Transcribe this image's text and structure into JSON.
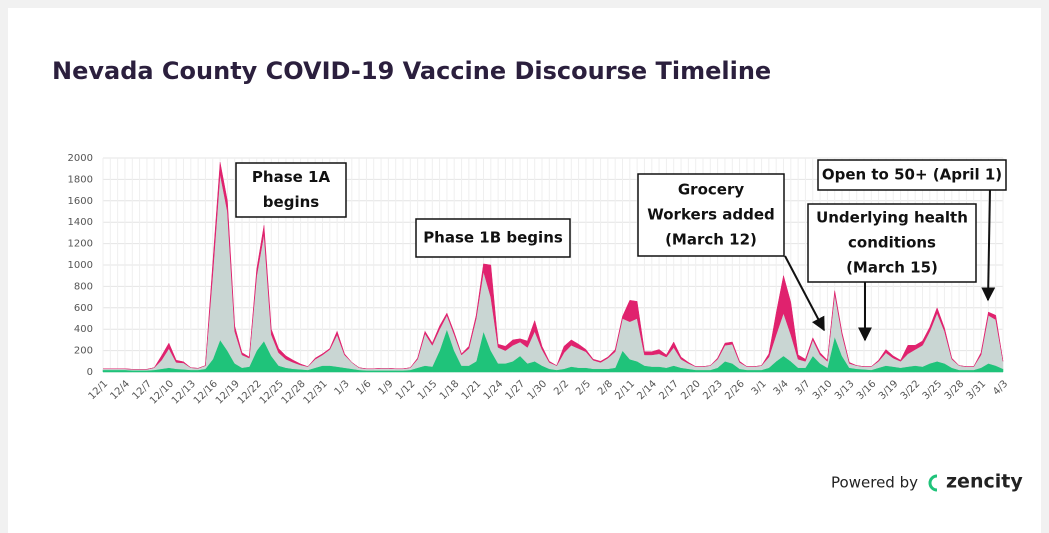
{
  "chart_data": {
    "type": "stacked-area",
    "title": "Nevada County COVID-19 Vaccine Discourse Timeline",
    "categories": [
      "12/1",
      null,
      null,
      "12/4",
      null,
      null,
      "12/7",
      null,
      null,
      "12/10",
      null,
      null,
      "12/13",
      null,
      null,
      "12/16",
      null,
      null,
      "12/19",
      null,
      null,
      "12/22",
      null,
      null,
      "12/25",
      null,
      null,
      "12/28",
      null,
      null,
      "12/31",
      null,
      null,
      "1/3",
      null,
      null,
      "1/6",
      null,
      null,
      "1/9",
      null,
      null,
      "1/12",
      null,
      null,
      "1/15",
      null,
      null,
      "1/18",
      null,
      null,
      "1/21",
      null,
      null,
      "1/24",
      null,
      null,
      "1/27",
      null,
      null,
      "1/30",
      null,
      null,
      "2/2",
      null,
      null,
      "2/5",
      null,
      null,
      "2/8",
      null,
      null,
      "2/11",
      null,
      null,
      "2/14",
      null,
      null,
      "2/17",
      null,
      null,
      "2/20",
      null,
      null,
      "2/23",
      null,
      null,
      "2/26",
      null,
      null,
      "3/1",
      null,
      null,
      "3/4",
      null,
      null,
      "3/7",
      null,
      null,
      "3/10",
      null,
      null,
      "3/13",
      null,
      null,
      "3/16",
      null,
      null,
      "3/19",
      null,
      null,
      "3/22",
      null,
      null,
      "3/25",
      null,
      null,
      "3/28",
      null,
      null,
      "3/31",
      null,
      null,
      "4/3"
    ],
    "series": [
      {
        "color": "#1fc37a",
        "values": [
          20,
          20,
          20,
          20,
          15,
          15,
          15,
          20,
          30,
          40,
          30,
          25,
          20,
          20,
          30,
          120,
          300,
          200,
          80,
          40,
          50,
          200,
          290,
          150,
          60,
          40,
          30,
          25,
          20,
          40,
          60,
          60,
          50,
          40,
          30,
          20,
          15,
          15,
          15,
          15,
          15,
          15,
          20,
          40,
          60,
          50,
          200,
          400,
          200,
          60,
          60,
          100,
          380,
          200,
          80,
          80,
          100,
          150,
          80,
          100,
          60,
          30,
          20,
          30,
          50,
          40,
          40,
          30,
          30,
          30,
          40,
          200,
          120,
          100,
          60,
          50,
          50,
          40,
          60,
          40,
          30,
          20,
          20,
          20,
          40,
          100,
          80,
          30,
          20,
          20,
          20,
          40,
          100,
          150,
          100,
          40,
          40,
          150,
          80,
          40,
          330,
          150,
          40,
          30,
          25,
          20,
          40,
          60,
          50,
          40,
          50,
          60,
          50,
          80,
          100,
          80,
          40,
          20,
          20,
          20,
          40,
          80,
          60,
          30
        ]
      },
      {
        "color": "#c9d6d3",
        "values": [
          10,
          10,
          10,
          10,
          10,
          10,
          10,
          20,
          80,
          180,
          60,
          60,
          20,
          15,
          30,
          800,
          1550,
          1300,
          300,
          120,
          80,
          700,
          1000,
          200,
          120,
          80,
          60,
          40,
          30,
          80,
          100,
          150,
          300,
          120,
          60,
          20,
          15,
          15,
          20,
          20,
          15,
          15,
          20,
          80,
          300,
          200,
          200,
          130,
          150,
          100,
          160,
          400,
          560,
          500,
          150,
          120,
          150,
          130,
          150,
          280,
          150,
          60,
          40,
          150,
          200,
          180,
          150,
          80,
          60,
          100,
          150,
          300,
          350,
          400,
          100,
          110,
          120,
          100,
          170,
          80,
          50,
          30,
          30,
          40,
          80,
          150,
          180,
          60,
          30,
          30,
          40,
          100,
          250,
          400,
          250,
          80,
          60,
          150,
          80,
          60,
          400,
          200,
          40,
          30,
          25,
          30,
          60,
          120,
          80,
          60,
          120,
          150,
          200,
          300,
          450,
          300,
          80,
          40,
          30,
          30,
          120,
          450,
          430,
          70
        ]
      },
      {
        "color": "#e0226e",
        "values": [
          0,
          0,
          0,
          0,
          0,
          0,
          0,
          0,
          40,
          50,
          20,
          10,
          0,
          0,
          0,
          100,
          110,
          100,
          50,
          20,
          10,
          60,
          80,
          50,
          40,
          30,
          20,
          10,
          0,
          10,
          10,
          10,
          30,
          10,
          0,
          0,
          0,
          0,
          0,
          0,
          0,
          0,
          0,
          10,
          20,
          20,
          30,
          20,
          20,
          10,
          20,
          30,
          70,
          300,
          30,
          40,
          50,
          30,
          60,
          100,
          30,
          10,
          0,
          60,
          50,
          40,
          20,
          10,
          10,
          10,
          20,
          20,
          200,
          160,
          30,
          30,
          40,
          20,
          50,
          20,
          10,
          0,
          0,
          0,
          10,
          20,
          20,
          10,
          0,
          0,
          0,
          30,
          200,
          350,
          300,
          40,
          20,
          20,
          20,
          10,
          30,
          20,
          10,
          0,
          0,
          0,
          10,
          30,
          20,
          10,
          80,
          40,
          40,
          40,
          50,
          30,
          10,
          0,
          0,
          0,
          20,
          30,
          40,
          0
        ]
      }
    ],
    "ylim": [
      0,
      2000
    ],
    "yticks": [
      0,
      200,
      400,
      600,
      800,
      1000,
      1200,
      1400,
      1600,
      1800,
      2000
    ],
    "grid": true,
    "annotations": [
      {
        "lines": [
          "Phase 1A",
          "begins"
        ]
      },
      {
        "lines": [
          "Phase 1B begins"
        ]
      },
      {
        "lines": [
          "Grocery",
          "Workers added",
          "(March 12)"
        ]
      },
      {
        "lines": [
          "Underlying health",
          "conditions",
          "(March 15)"
        ]
      },
      {
        "lines": [
          "Open to 50+ (April 1)"
        ]
      }
    ]
  },
  "footer": {
    "powered_by": "Powered by",
    "brand": "zencity"
  }
}
